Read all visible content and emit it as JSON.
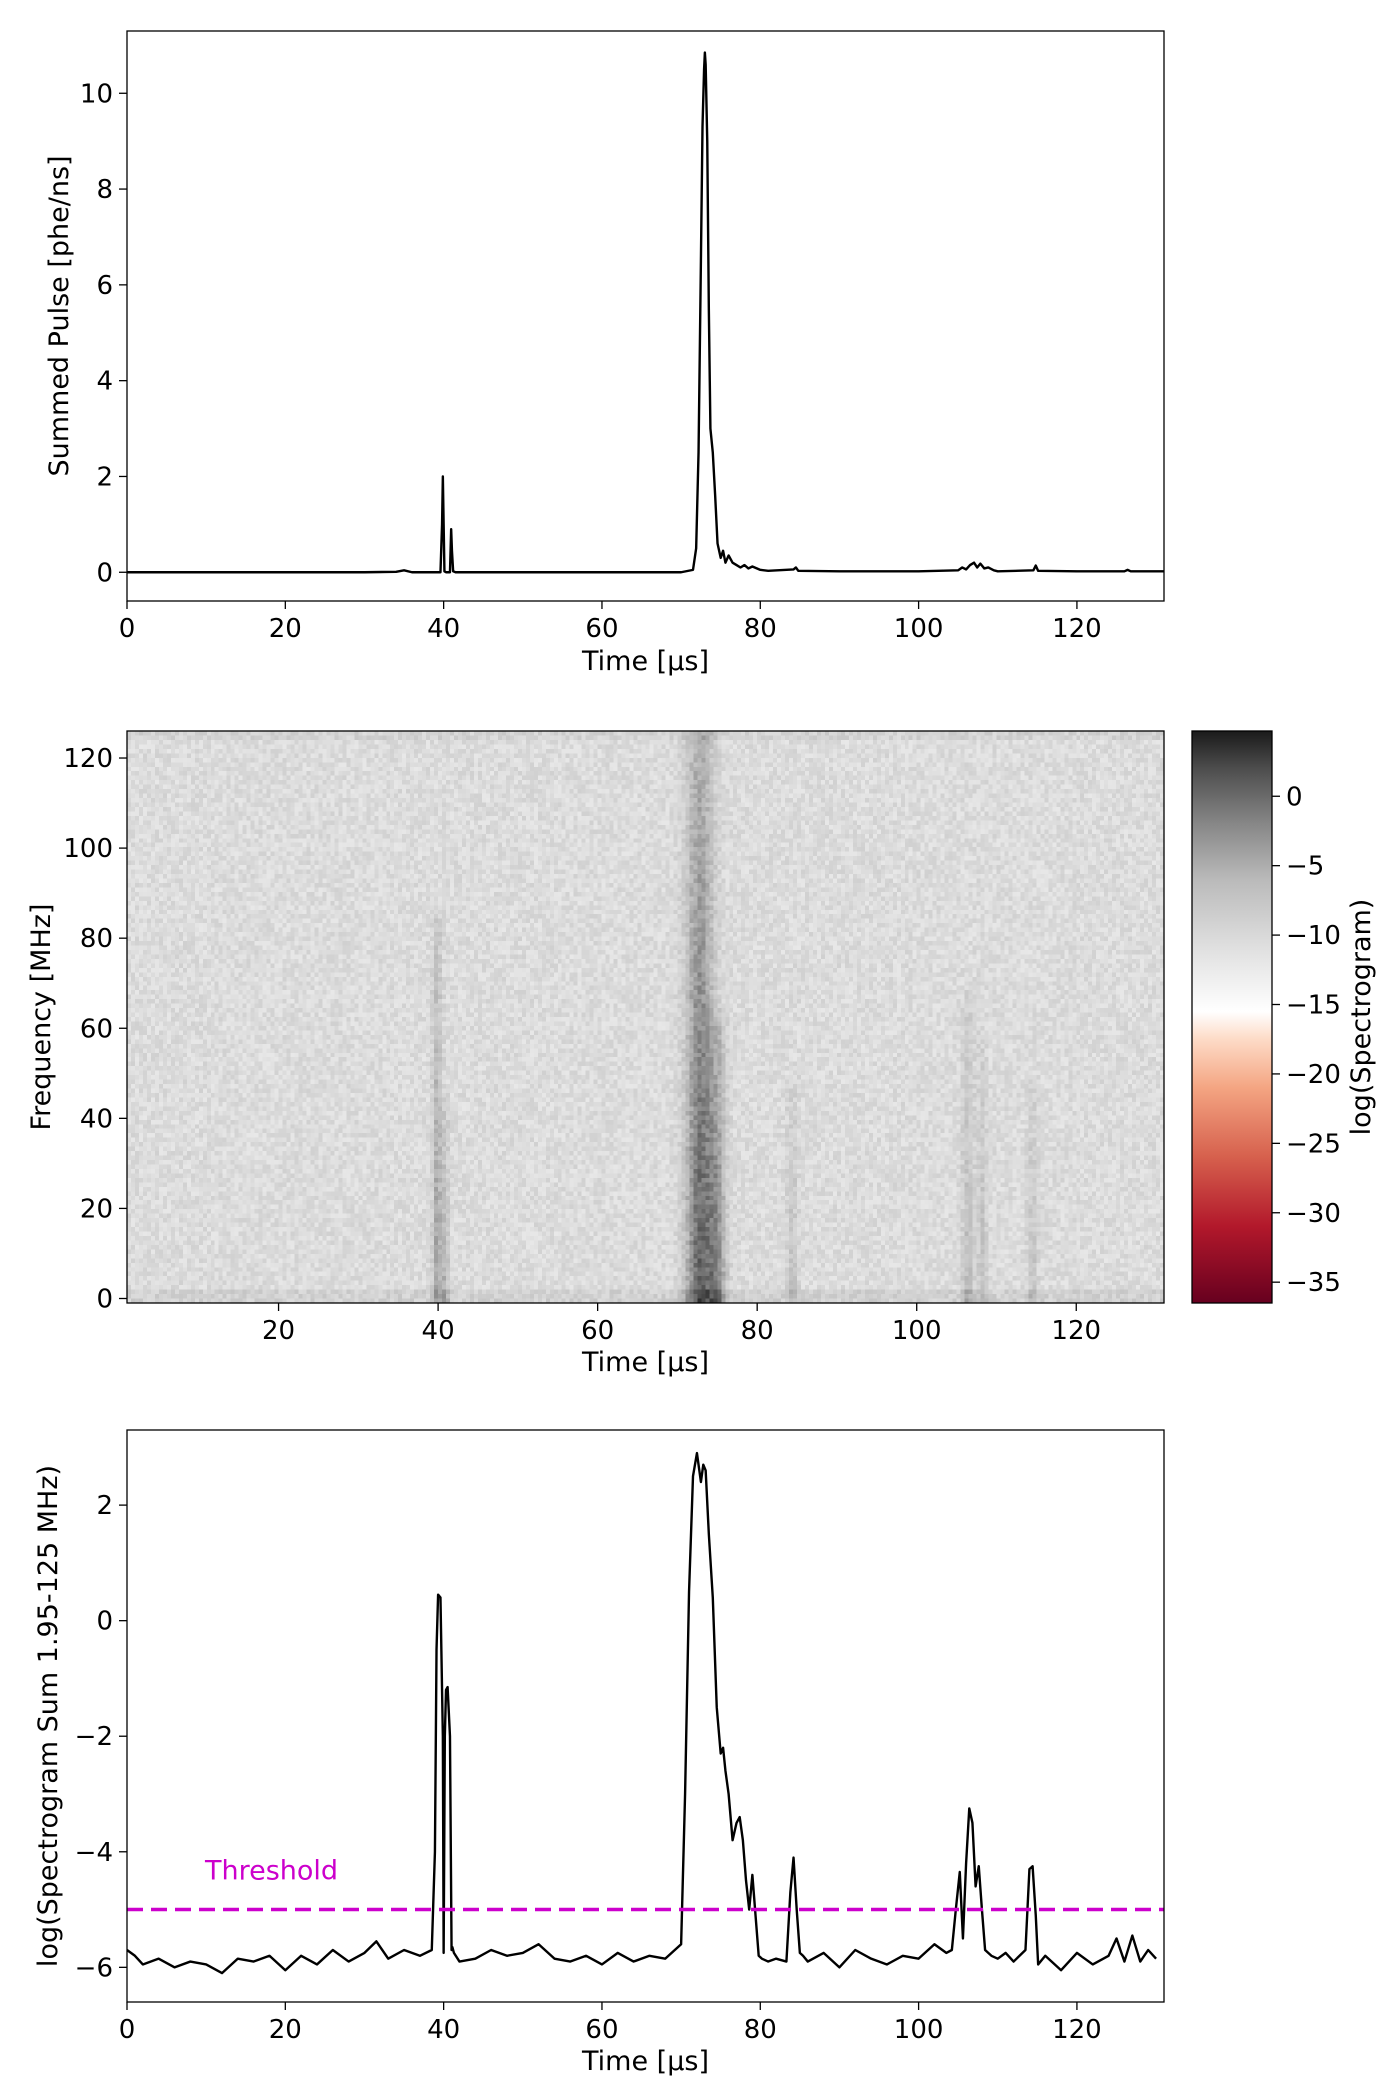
{
  "chart_data": [
    {
      "type": "line",
      "xlabel": "Time [μs]",
      "ylabel": "Summed Pulse [phe/ns]",
      "xlim": [
        0,
        131
      ],
      "ylim": [
        -0.6,
        11.3
      ],
      "xticks": [
        0,
        20,
        40,
        60,
        80,
        100,
        120
      ],
      "yticks": [
        0,
        2,
        4,
        6,
        8,
        10
      ],
      "grid": false,
      "series": [
        {
          "color": "#000000",
          "x": [
            0,
            30,
            34,
            35,
            36,
            39.6,
            39.8,
            39.9,
            40.0,
            40.1,
            40.3,
            40.8,
            40.95,
            41.05,
            41.2,
            41.5,
            50,
            60,
            70,
            71.5,
            71.9,
            72.2,
            72.5,
            72.7,
            72.9,
            73.0,
            73.1,
            73.3,
            73.5,
            73.7,
            74.0,
            74.3,
            74.6,
            75.0,
            75.3,
            75.6,
            76.0,
            76.5,
            77.0,
            77.5,
            78.0,
            78.5,
            79.0,
            80.0,
            81.0,
            84.2,
            84.5,
            84.8,
            90,
            100,
            105.0,
            105.5,
            106.0,
            106.5,
            107.0,
            107.4,
            107.8,
            108.3,
            108.8,
            109.5,
            110,
            114.5,
            114.8,
            115.1,
            120,
            126,
            126.4,
            126.8,
            131
          ],
          "y": [
            0,
            0,
            0.01,
            0.04,
            0,
            0,
            1.0,
            2.0,
            1.0,
            0.02,
            0,
            0,
            0.9,
            0.45,
            0.02,
            0,
            0,
            0,
            0,
            0.05,
            0.5,
            2.5,
            6.5,
            9.3,
            10.5,
            10.85,
            10.6,
            9.0,
            5.5,
            3.0,
            2.5,
            1.6,
            0.6,
            0.3,
            0.45,
            0.2,
            0.35,
            0.2,
            0.15,
            0.1,
            0.15,
            0.08,
            0.12,
            0.05,
            0.03,
            0.06,
            0.1,
            0.03,
            0.02,
            0.02,
            0.04,
            0.1,
            0.06,
            0.15,
            0.2,
            0.1,
            0.18,
            0.08,
            0.1,
            0.04,
            0.02,
            0.04,
            0.14,
            0.03,
            0.02,
            0.02,
            0.05,
            0.02,
            0.02
          ]
        }
      ]
    },
    {
      "type": "heatmap",
      "xlabel": "Time [μs]",
      "ylabel": "Frequency [MHz]",
      "xlim": [
        1,
        131
      ],
      "ylim": [
        -1,
        126
      ],
      "xticks": [
        20,
        40,
        60,
        80,
        100,
        120
      ],
      "yticks": [
        0,
        20,
        40,
        60,
        80,
        100,
        120
      ],
      "colorbar": {
        "label": "log(Spectrogram)",
        "range": [
          -36.5,
          4.7
        ],
        "ticks": [
          0,
          -5,
          -10,
          -15,
          -20,
          -25,
          -30,
          -35
        ],
        "colors": [
          {
            "value": -36.5,
            "color": "#67001f"
          },
          {
            "value": -31,
            "color": "#b2182b"
          },
          {
            "value": -26,
            "color": "#d6604d"
          },
          {
            "value": -21,
            "color": "#f4a582"
          },
          {
            "value": -17.5,
            "color": "#fddbc7"
          },
          {
            "value": -15.5,
            "color": "#ffffff"
          },
          {
            "value": -11,
            "color": "#e0e0e0"
          },
          {
            "value": -6,
            "color": "#bababa"
          },
          {
            "value": -2,
            "color": "#878787"
          },
          {
            "value": 2,
            "color": "#4d4d4d"
          },
          {
            "value": 4.7,
            "color": "#1a1a1a"
          }
        ]
      },
      "features": [
        {
          "t": 39.9,
          "width": 0.6,
          "fmax": 82,
          "strength": 6.5
        },
        {
          "t": 40.9,
          "width": 0.5,
          "fmax": 42,
          "strength": 4.5
        },
        {
          "t": 72.8,
          "width": 1.8,
          "fmax": 126,
          "strength": 11
        },
        {
          "t": 75.0,
          "width": 1.2,
          "fmax": 60,
          "strength": 7
        },
        {
          "t": 84.4,
          "width": 0.7,
          "fmax": 45,
          "strength": 3.5
        },
        {
          "t": 106.4,
          "width": 0.8,
          "fmax": 65,
          "strength": 4
        },
        {
          "t": 108.2,
          "width": 0.6,
          "fmax": 55,
          "strength": 3.5
        },
        {
          "t": 114.5,
          "width": 0.6,
          "fmax": 45,
          "strength": 3.5
        }
      ],
      "background_level": -10.5
    },
    {
      "type": "line",
      "xlabel": "Time [μs]",
      "ylabel": "log(Spectrogram Sum 1.95-125 MHz)",
      "xlim": [
        0,
        131
      ],
      "ylim": [
        -6.6,
        3.3
      ],
      "xticks": [
        0,
        20,
        40,
        60,
        80,
        100,
        120
      ],
      "yticks": [
        2,
        0,
        -2,
        -4,
        -6
      ],
      "grid": false,
      "threshold": {
        "value": -5,
        "label": "Threshold",
        "color": "#cc00cc"
      },
      "series": [
        {
          "color": "#000000",
          "x": [
            0,
            1,
            2,
            4,
            6,
            8,
            10,
            12,
            14,
            16,
            18,
            20,
            22,
            24,
            26,
            28,
            30,
            31.5,
            33,
            35,
            37,
            38.5,
            38.9,
            39.1,
            39.3,
            39.6,
            39.9,
            40.0,
            40.15,
            40.3,
            40.5,
            40.8,
            41.0,
            41.1,
            41.3,
            42,
            44,
            46,
            48,
            50,
            52,
            54,
            56,
            58,
            60,
            62,
            64,
            66,
            68,
            70.0,
            70.5,
            71.0,
            71.5,
            72.0,
            72.5,
            72.8,
            73.1,
            73.5,
            74.0,
            74.5,
            75.0,
            75.3,
            75.6,
            76.0,
            76.5,
            77.0,
            77.4,
            77.8,
            78.2,
            78.6,
            79.0,
            79.4,
            79.8,
            80.2,
            81,
            82,
            83.3,
            83.8,
            84.2,
            84.6,
            85.0,
            85.4,
            86,
            88,
            90,
            92,
            94,
            96,
            98,
            100,
            102,
            103.5,
            104.2,
            104.7,
            105.2,
            105.6,
            106.0,
            106.4,
            106.8,
            107.2,
            107.6,
            108.0,
            108.4,
            108.8,
            109.2,
            110,
            111,
            112,
            113.5,
            114.0,
            114.4,
            114.8,
            115.1,
            116,
            118,
            120,
            122,
            124,
            125,
            126,
            127,
            128,
            129,
            130
          ],
          "y": [
            -5.7,
            -5.8,
            -5.95,
            -5.85,
            -6.0,
            -5.9,
            -5.95,
            -6.1,
            -5.85,
            -5.9,
            -5.8,
            -6.05,
            -5.8,
            -5.95,
            -5.7,
            -5.9,
            -5.75,
            -5.55,
            -5.85,
            -5.7,
            -5.8,
            -5.7,
            -4.0,
            -0.5,
            0.45,
            0.4,
            -2.0,
            -5.75,
            -2.0,
            -1.2,
            -1.15,
            -2.0,
            -5.7,
            -5.65,
            -5.75,
            -5.9,
            -5.85,
            -5.7,
            -5.8,
            -5.75,
            -5.6,
            -5.85,
            -5.9,
            -5.8,
            -5.95,
            -5.75,
            -5.9,
            -5.8,
            -5.85,
            -5.6,
            -3.0,
            0.5,
            2.5,
            2.9,
            2.4,
            2.7,
            2.6,
            1.5,
            0.4,
            -1.5,
            -2.3,
            -2.2,
            -2.6,
            -3.0,
            -3.8,
            -3.5,
            -3.4,
            -3.8,
            -4.5,
            -5.0,
            -4.4,
            -5.1,
            -5.8,
            -5.85,
            -5.9,
            -5.85,
            -5.9,
            -4.7,
            -4.1,
            -5.0,
            -5.75,
            -5.8,
            -5.9,
            -5.75,
            -6.0,
            -5.7,
            -5.85,
            -5.95,
            -5.8,
            -5.85,
            -5.6,
            -5.75,
            -5.7,
            -5.0,
            -4.35,
            -5.5,
            -4.2,
            -3.25,
            -3.5,
            -4.6,
            -4.25,
            -5.0,
            -5.7,
            -5.75,
            -5.8,
            -5.85,
            -5.75,
            -5.9,
            -5.7,
            -4.3,
            -4.25,
            -5.1,
            -5.95,
            -5.8,
            -6.05,
            -5.75,
            -5.95,
            -5.8,
            -5.5,
            -5.9,
            -5.45,
            -5.9,
            -5.7,
            -5.85
          ]
        }
      ]
    }
  ]
}
